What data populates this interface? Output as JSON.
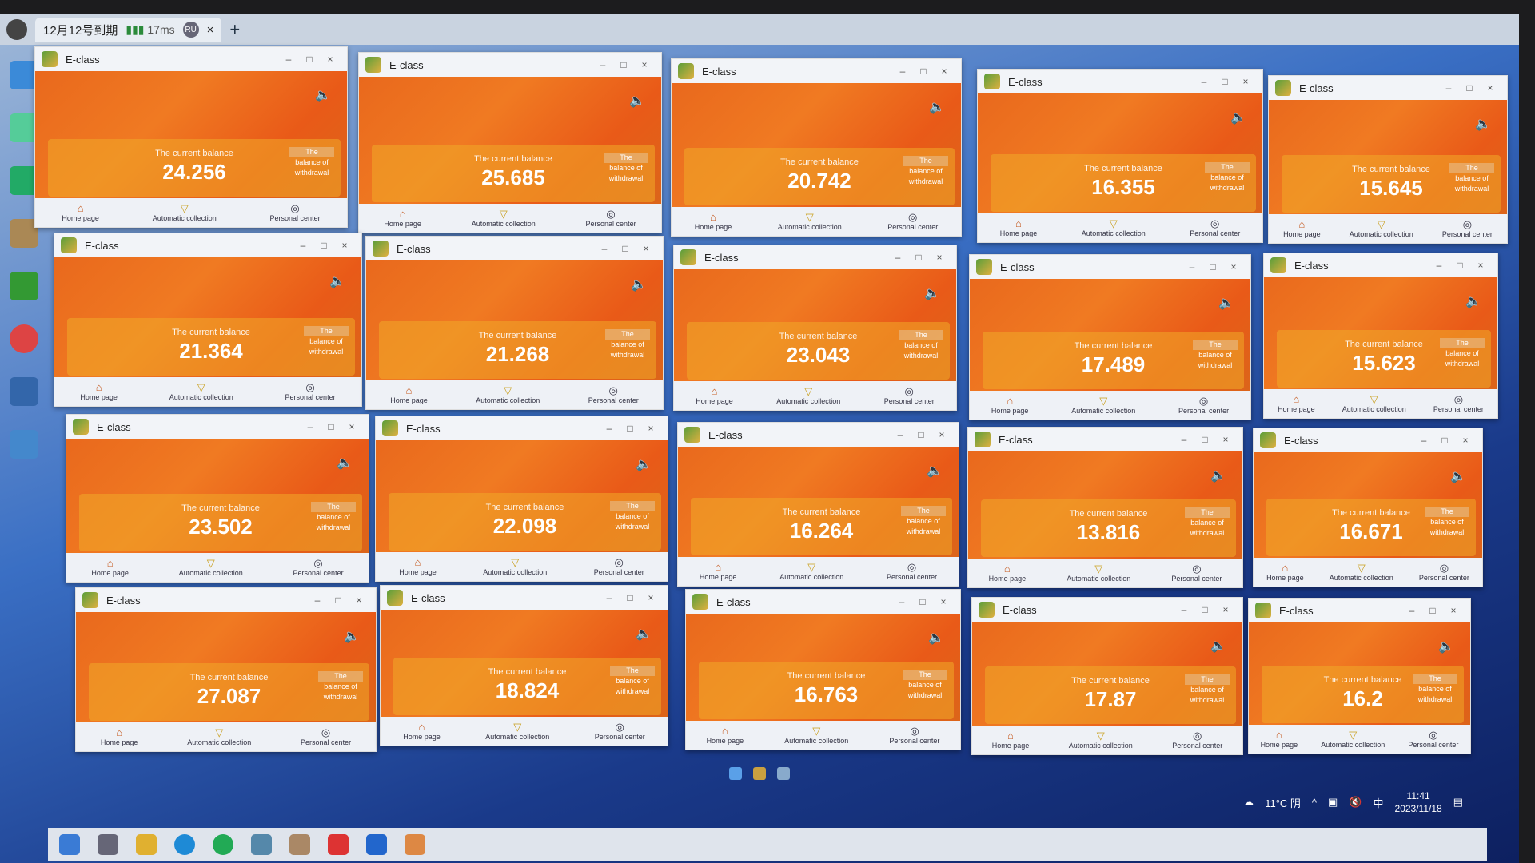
{
  "session_tab": {
    "title": "12月12号到期",
    "ping": "17ms",
    "badge": "RU",
    "close": "×",
    "new_tab": "+"
  },
  "app": {
    "title": "E-class",
    "minimize": "–",
    "maximize": "□",
    "close": "×",
    "speaker": "🔈",
    "balance_label": "The current balance",
    "withdrawal": [
      "The",
      "balance of",
      "withdrawal"
    ],
    "nav": {
      "home": "Home page",
      "auto": "Automatic collection",
      "personal": "Personal center",
      "home_icon": "⌂",
      "auto_icon": "▽",
      "personal_icon": "◎"
    }
  },
  "windows": [
    {
      "balance": "24.256"
    },
    {
      "balance": "25.685"
    },
    {
      "balance": "20.742"
    },
    {
      "balance": "16.355"
    },
    {
      "balance": "15.645"
    },
    {
      "balance": "21.364"
    },
    {
      "balance": "21.268"
    },
    {
      "balance": "23.043"
    },
    {
      "balance": "17.489"
    },
    {
      "balance": "15.623"
    },
    {
      "balance": "23.502"
    },
    {
      "balance": "22.098"
    },
    {
      "balance": "16.264"
    },
    {
      "balance": "13.816"
    },
    {
      "balance": "16.671"
    },
    {
      "balance": "27.087"
    },
    {
      "balance": "18.824"
    },
    {
      "balance": "16.763"
    },
    {
      "balance": "17.87"
    },
    {
      "balance": "16.2"
    }
  ],
  "tray": {
    "weather": "11°C 阴",
    "ime": "中",
    "time": "11:41",
    "date": "2023/11/18"
  }
}
